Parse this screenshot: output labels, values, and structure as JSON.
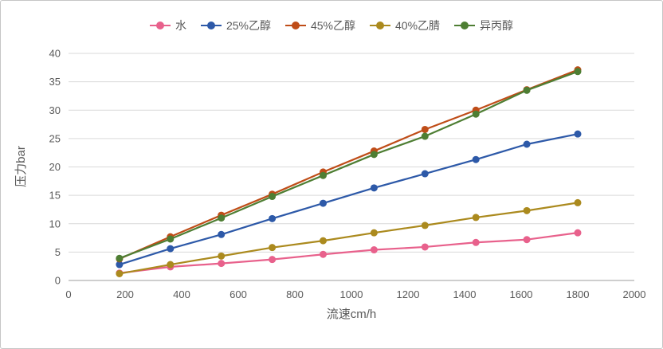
{
  "chart_data": {
    "type": "line",
    "x": [
      180,
      360,
      540,
      720,
      900,
      1080,
      1260,
      1440,
      1620,
      1800
    ],
    "series": [
      {
        "name": "水",
        "color": "#e8618c",
        "values": [
          1.3,
          2.4,
          3.0,
          3.7,
          4.6,
          5.4,
          5.9,
          6.7,
          7.2,
          8.4
        ]
      },
      {
        "name": "25%乙醇",
        "color": "#2d59a8",
        "values": [
          2.8,
          5.6,
          8.1,
          10.9,
          13.6,
          16.3,
          18.8,
          21.3,
          24.0,
          25.8
        ]
      },
      {
        "name": "45%乙醇",
        "color": "#bf4d18",
        "values": [
          3.8,
          7.7,
          11.5,
          15.2,
          19.1,
          22.8,
          26.6,
          30.0,
          33.6,
          37.1
        ]
      },
      {
        "name": "40%乙腈",
        "color": "#ab8a1e",
        "values": [
          1.2,
          2.8,
          4.3,
          5.8,
          7.0,
          8.4,
          9.7,
          11.1,
          12.3,
          13.7
        ]
      },
      {
        "name": "异丙醇",
        "color": "#4e7e33",
        "values": [
          3.9,
          7.3,
          11.0,
          14.8,
          18.5,
          22.2,
          25.4,
          29.3,
          33.5,
          36.8
        ]
      }
    ],
    "title": "",
    "xlabel": "流速cm/h",
    "ylabel": "压力bar",
    "xlim": [
      0,
      2000
    ],
    "ylim": [
      0,
      40
    ],
    "x_ticks": [
      0,
      200,
      400,
      600,
      800,
      1000,
      1200,
      1400,
      1600,
      1800,
      2000
    ],
    "y_ticks": [
      0,
      5,
      10,
      15,
      20,
      25,
      30,
      35,
      40
    ],
    "grid": "horizontal",
    "legend_position": "top"
  }
}
